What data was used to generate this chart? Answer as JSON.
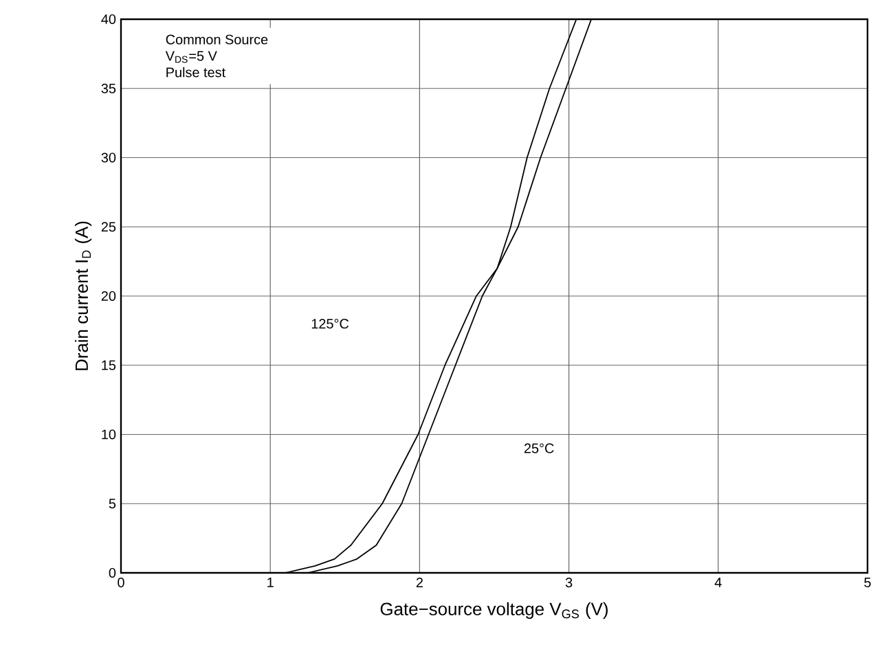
{
  "chart_data": {
    "type": "line",
    "xlabel": "Gate−source voltage V$_{GS}$ (V)",
    "ylabel": "Drain current I$_{D}$ (A)",
    "xlim": [
      0,
      5
    ],
    "ylim": [
      0,
      40
    ],
    "xticks": [
      0,
      1,
      2,
      3,
      4,
      5
    ],
    "yticks": [
      0,
      5,
      10,
      15,
      20,
      25,
      30,
      35,
      40
    ],
    "grid": true,
    "marker": "none",
    "line_style": "solid",
    "series": [
      {
        "color": "#000000",
        "x": [
          1.1,
          1.3,
          1.43,
          1.54,
          1.75,
          1.99,
          2.17,
          2.38,
          2.52,
          2.66,
          2.81,
          2.98,
          3.15
        ],
        "values": [
          0,
          0.5,
          1,
          2,
          5,
          10,
          15,
          20,
          22,
          25,
          30,
          35,
          40
        ]
      },
      {
        "color": "#000000",
        "x": [
          1.25,
          1.45,
          1.58,
          1.71,
          1.88,
          2.06,
          2.24,
          2.42,
          2.52,
          2.61,
          2.72,
          2.87,
          3.05
        ],
        "values": [
          0,
          0.5,
          1,
          2,
          5,
          10,
          15,
          20,
          22,
          25,
          30,
          35,
          40
        ]
      }
    ],
    "annotations": [
      "Common Source",
      "V$_{DS}$=5 V",
      "Pulse test",
      {
        "text": "125°C",
        "x": 1.4,
        "y": 18
      },
      {
        "text": "25°C",
        "x": 2.8,
        "y": 9
      }
    ]
  }
}
